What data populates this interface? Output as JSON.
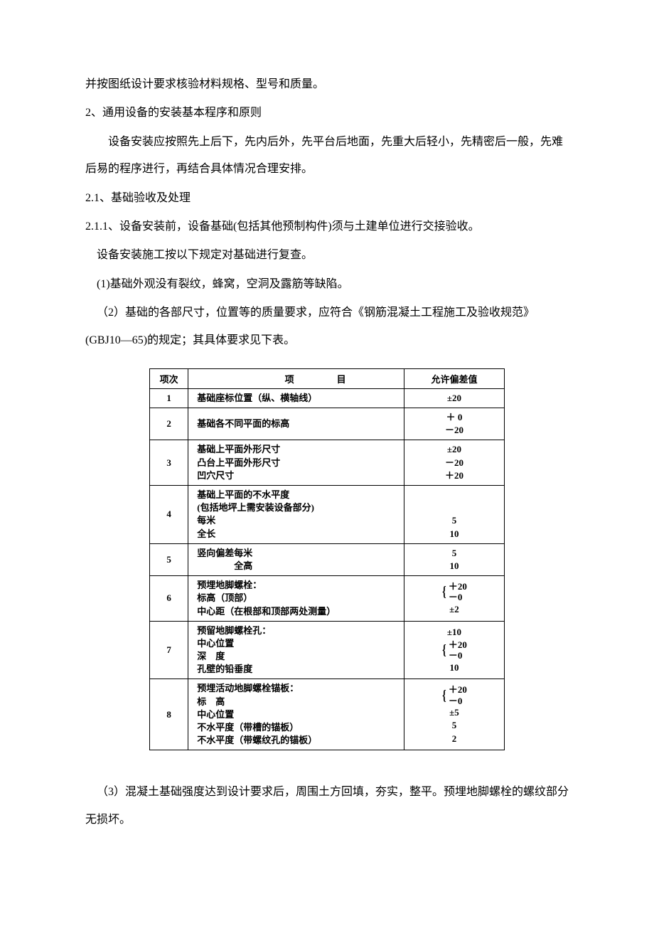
{
  "text": {
    "p1": "并按图纸设计要求核验材料规格、型号和质量。",
    "p2": "2、通用设备的安装基本程序和原则",
    "p3": "设备安装应按照先上后下，先内后外，先平台后地面，先重大后轻小，先精密后一般，先难后易的程序进行，再结合具体情况合理安排。",
    "p4": "2.1、基础验收及处理",
    "p5": "2.1.1、设备安装前，设备基础(包括其他预制构件)须与土建单位进行交接验收。",
    "p6": "设备安装施工按以下规定对基础进行复查。",
    "p7": "(1)基础外观没有裂纹，蜂窝，空洞及露筋等缺陷。",
    "p8": "（2）基础的各部尺寸，位置等的质量要求，应符合《钢筋混凝土工程施工及验收规范》(GBJ10—65)的规定；其具体要求见下表。",
    "p9": "（3）混凝土基础强度达到设计要求后，周围土方回填，夯实，整平。预埋地脚螺栓的螺纹部分无损坏。"
  },
  "table": {
    "headers": {
      "num": "项次",
      "item": "项",
      "item_suffix": "目",
      "tol": "允许偏差值"
    },
    "rows": [
      {
        "num": "1",
        "item_lines": [
          "基础座标位置（纵、横轴线）"
        ],
        "tol_lines": [
          "±20"
        ],
        "braces": []
      },
      {
        "num": "2",
        "item_lines": [
          "基础各不同平面的标高"
        ],
        "tol_lines": [
          "＋ 0",
          "－20"
        ],
        "braces": []
      },
      {
        "num": "3",
        "item_lines": [
          "基础上平面外形尺寸",
          "凸台上平面外形尺寸",
          "凹穴尺寸"
        ],
        "tol_lines": [
          "±20",
          "－20",
          "＋20"
        ],
        "braces": []
      },
      {
        "num": "4",
        "item_lines": [
          "基础上平面的不水平度",
          "(包括地坪上需安装设备部分)",
          "每米",
          "全长"
        ],
        "tol_lines": [
          "",
          "",
          "5",
          "10"
        ],
        "braces": []
      },
      {
        "num": "5",
        "item_lines": [
          "竖向偏差每米",
          "　　　　全高"
        ],
        "tol_lines": [
          "5",
          "10"
        ],
        "braces": []
      },
      {
        "num": "6",
        "item_lines": [
          "预埋地脚螺栓：",
          "标高（顶部）",
          "中心距（在根部和顶部两处测量）"
        ],
        "tol_parts": [
          {
            "type": "brace",
            "values": [
              "＋20",
              "－0"
            ]
          },
          {
            "type": "plain",
            "value": "±2"
          }
        ]
      },
      {
        "num": "7",
        "item_lines": [
          "预留地脚螺栓孔：",
          "中心位置",
          "深　度",
          "孔壁的铅垂度"
        ],
        "tol_parts": [
          {
            "type": "plain",
            "value": "±10"
          },
          {
            "type": "brace",
            "values": [
              "＋20",
              "－0"
            ]
          },
          {
            "type": "plain",
            "value": "10"
          }
        ]
      },
      {
        "num": "8",
        "item_lines": [
          "预埋活动地脚螺栓锚板：",
          "标　高",
          "中心位置",
          "不水平度（带槽的锚板）",
          "不水平度（带螺纹孔的锚板）"
        ],
        "tol_parts": [
          {
            "type": "brace",
            "values": [
              "＋20",
              "－0"
            ]
          },
          {
            "type": "plain",
            "value": "±5"
          },
          {
            "type": "plain",
            "value": "5"
          },
          {
            "type": "plain",
            "value": "2"
          }
        ]
      }
    ]
  }
}
